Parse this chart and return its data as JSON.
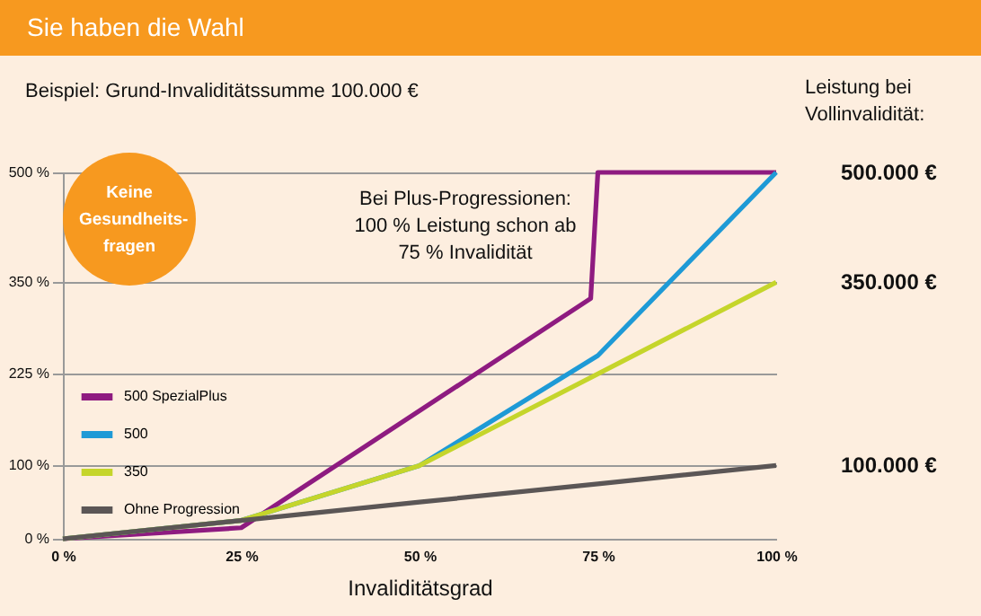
{
  "chart_data": {
    "type": "line",
    "title": "Sie haben die Wahl",
    "xlabel": "Invaliditätsgrad",
    "x": [
      0,
      25,
      50,
      75,
      100
    ],
    "series": [
      {
        "name": "500 SpezialPlus",
        "color": "#8e1b80",
        "x": [
          0,
          25,
          74,
          75,
          100
        ],
        "values": [
          0,
          15,
          328,
          500,
          500
        ]
      },
      {
        "name": "500",
        "color": "#1e9ad6",
        "values": [
          0,
          25,
          100,
          250,
          500
        ]
      },
      {
        "name": "350",
        "color": "#c5d52b",
        "values": [
          0,
          25,
          100,
          225,
          350
        ]
      },
      {
        "name": "Ohne Progression",
        "color": "#5b5656",
        "values": [
          0,
          25,
          50,
          75,
          100
        ]
      }
    ],
    "xlim": [
      0,
      100
    ],
    "xticks": [
      {
        "value": 0,
        "label": "0 %"
      },
      {
        "value": 25,
        "label": "25 %"
      },
      {
        "value": 50,
        "label": "50 %"
      },
      {
        "value": 75,
        "label": "75 %"
      },
      {
        "value": 100,
        "label": "100 %"
      }
    ],
    "ylim": [
      0,
      500
    ],
    "yticks": [
      {
        "value": 0,
        "label": "0 %"
      },
      {
        "value": 100,
        "label": "100 %"
      },
      {
        "value": 225,
        "label": "225 %"
      },
      {
        "value": 350,
        "label": "350 %"
      },
      {
        "value": 500,
        "label": "500 %"
      }
    ],
    "grid": "y",
    "legend": "bottom left",
    "marker": "none",
    "line_style": "solid",
    "annotations": [
      "Beispiel:  Grund-Invaliditätssumme 100.000 €",
      "Leistung bei Vollinvalidität:",
      "500.000 €",
      "350.000 €",
      "100.000 €",
      "Bei Plus-Progressionen: 100 % Leistung schon ab 75 % Invalidität",
      "Keine Gesundheits-fragen"
    ]
  }
}
